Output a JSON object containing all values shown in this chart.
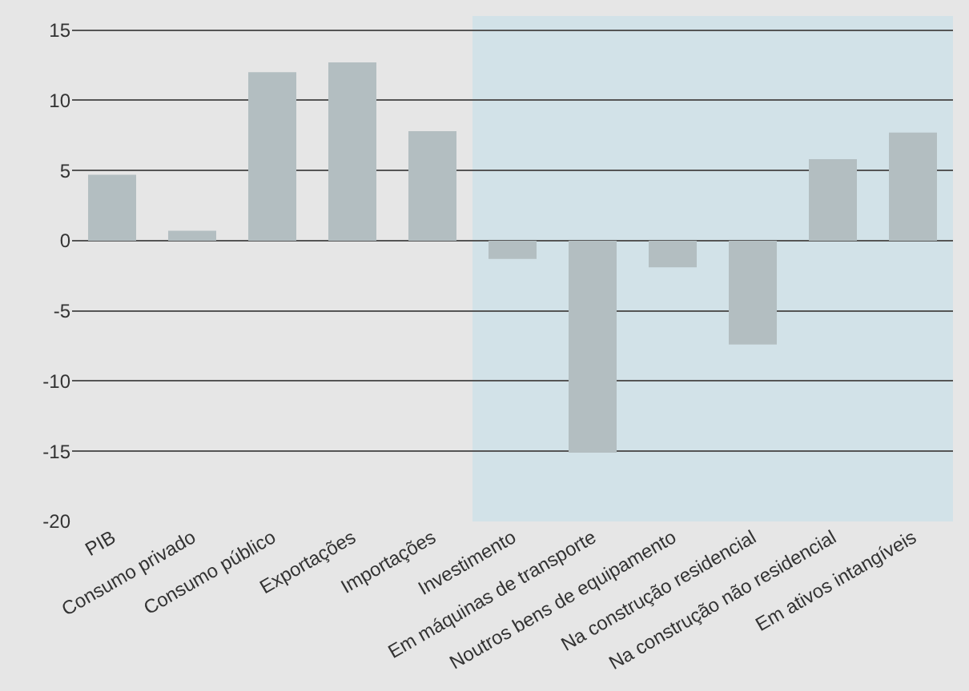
{
  "chart_data": {
    "type": "bar",
    "categories": [
      "PIB",
      "Consumo privado",
      "Consumo público",
      "Exportações",
      "Importações",
      "Investimento",
      "Em máquinas de transporte",
      "Noutros bens de equipamento",
      "Na construção residencial",
      "Na construção não residencial",
      "Em ativos intangíveis"
    ],
    "series": [
      {
        "color": "#b3bec1",
        "values": [
          4.7,
          0.7,
          12.0,
          12.7,
          7.8,
          -1.3,
          -15.1,
          -1.9,
          -7.4,
          5.8,
          7.7
        ]
      }
    ],
    "ylim": [
      -20,
      16
    ],
    "yticks": [
      -20,
      -15,
      -10,
      -5,
      0,
      5,
      10,
      15
    ],
    "grid": "y",
    "bands": [
      {
        "axis": "x",
        "from": "Investimento",
        "to": "Em ativos intangíveis",
        "color": "#d2e2e8"
      }
    ]
  }
}
